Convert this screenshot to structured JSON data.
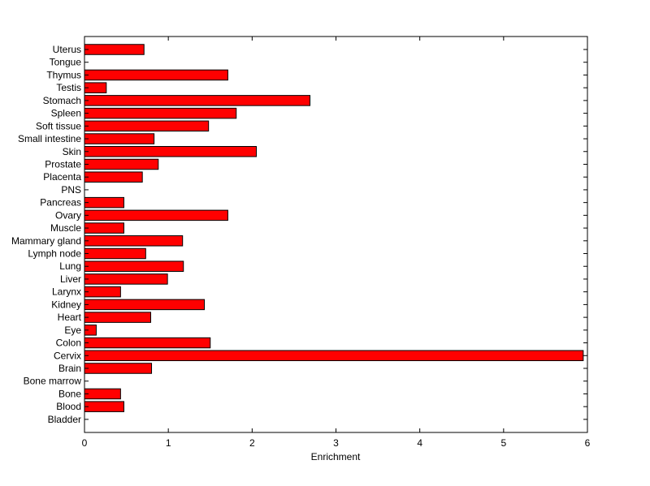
{
  "chart_data": {
    "type": "bar",
    "orientation": "horizontal",
    "title": "",
    "xlabel": "Enrichment",
    "ylabel": "",
    "xlim": [
      0,
      6
    ],
    "xticks": [
      0,
      1,
      2,
      3,
      4,
      5,
      6
    ],
    "grid": false,
    "legend": "none",
    "bar_color": "#ff0000",
    "categories": [
      "Uterus",
      "Tongue",
      "Thymus",
      "Testis",
      "Stomach",
      "Spleen",
      "Soft tissue",
      "Small intestine",
      "Skin",
      "Prostate",
      "Placenta",
      "PNS",
      "Pancreas",
      "Ovary",
      "Muscle",
      "Mammary gland",
      "Lymph node",
      "Lung",
      "Liver",
      "Larynx",
      "Kidney",
      "Heart",
      "Eye",
      "Colon",
      "Cervix",
      "Brain",
      "Bone marrow",
      "Bone",
      "Blood",
      "Bladder"
    ],
    "values": [
      0.71,
      0,
      1.71,
      0.26,
      2.69,
      1.81,
      1.48,
      0.83,
      2.05,
      0.88,
      0.69,
      0,
      0.47,
      1.71,
      0.47,
      1.17,
      0.73,
      1.18,
      0.99,
      0.43,
      1.43,
      0.79,
      0.14,
      1.5,
      5.95,
      0.8,
      0,
      0.43,
      0.47,
      0
    ]
  }
}
